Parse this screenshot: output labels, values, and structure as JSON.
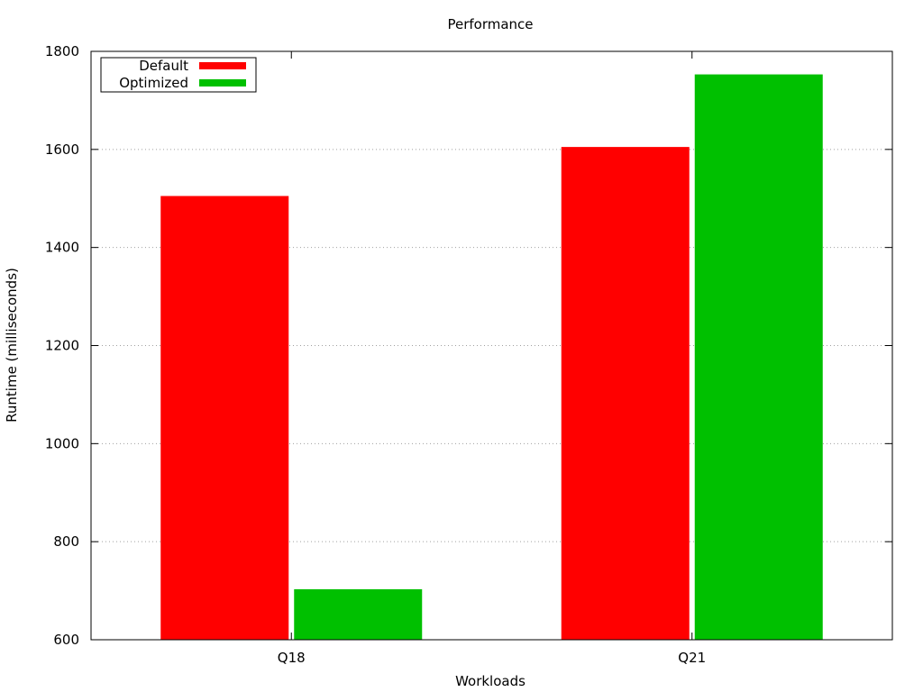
{
  "chart_data": {
    "type": "bar",
    "title": "Performance",
    "xlabel": "Workloads",
    "ylabel": "Runtime (milliseconds)",
    "categories": [
      "Q18",
      "Q21"
    ],
    "series": [
      {
        "name": "Default",
        "color": "#ff0000",
        "values": [
          1505,
          1605
        ]
      },
      {
        "name": "Optimized",
        "color": "#00c000",
        "values": [
          703,
          1753
        ]
      }
    ],
    "ylim": [
      600,
      1800
    ],
    "yticks": [
      600,
      800,
      1000,
      1200,
      1400,
      1600,
      1800
    ],
    "grid": "y-dotted",
    "legend_position": "top-left"
  }
}
